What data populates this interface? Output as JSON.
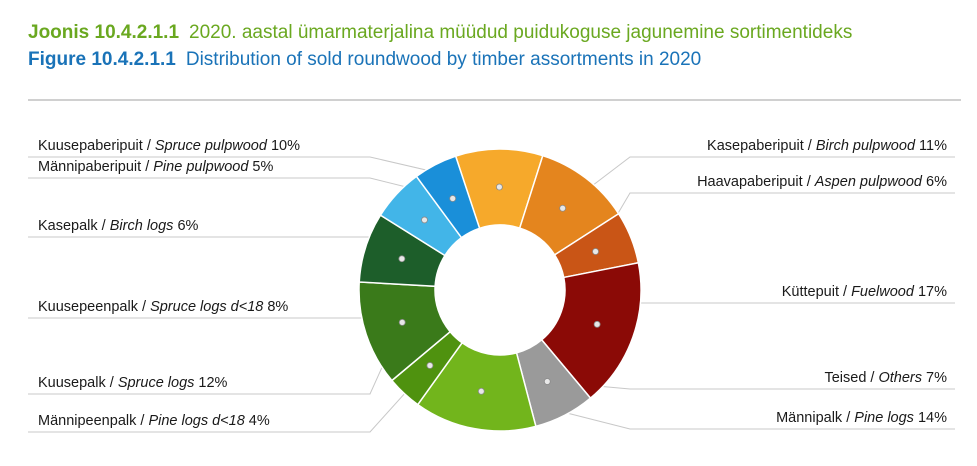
{
  "title": {
    "et_number": "Joonis 10.4.2.1.1",
    "et_text": "2020. aastal ümarmaterjalina müüdud puidukoguse jagunemine sortimentideks",
    "en_number": "Figure 10.4.2.1.1",
    "en_text": "Distribution of sold roundwood by timber assortments in 2020"
  },
  "chart_data": {
    "type": "pie",
    "donut": true,
    "unit": "%",
    "slices": [
      {
        "et": "Kuusepaberipuit",
        "en": "Spruce pulpwood",
        "value": 10,
        "pct": "10%",
        "color": "#f6a92b"
      },
      {
        "et": "Kasepaberipuit",
        "en": "Birch pulpwood",
        "value": 11,
        "pct": "11%",
        "color": "#e4851e"
      },
      {
        "et": "Haavapaberipuit",
        "en": "Aspen pulpwood",
        "value": 6,
        "pct": "6%",
        "color": "#c95516"
      },
      {
        "et": "Küttepuit",
        "en": "Fuelwood",
        "value": 17,
        "pct": "17%",
        "color": "#8b0a06"
      },
      {
        "et": "Teised",
        "en": "Others",
        "value": 7,
        "pct": "7%",
        "color": "#9a9a9a"
      },
      {
        "et": "Männipalk",
        "en": "Pine logs",
        "value": 14,
        "pct": "14%",
        "color": "#72b51c"
      },
      {
        "et": "Männipeenpalk",
        "en": "Pine logs d<18",
        "value": 4,
        "pct": "4%",
        "color": "#4f920f"
      },
      {
        "et": "Kuusepalk",
        "en": "Spruce logs",
        "value": 12,
        "pct": "12%",
        "color": "#3a7a1a"
      },
      {
        "et": "Kuusepeenpalk",
        "en": "Spruce logs d<18",
        "value": 8,
        "pct": "8%",
        "color": "#1d5e2a"
      },
      {
        "et": "Kasepalk",
        "en": "Birch logs",
        "value": 6,
        "pct": "6%",
        "color": "#42b5e8"
      },
      {
        "et": "Männipaberipuit",
        "en": "Pine pulpwood",
        "value": 5,
        "pct": "5%",
        "color": "#1a8fd9"
      }
    ]
  }
}
